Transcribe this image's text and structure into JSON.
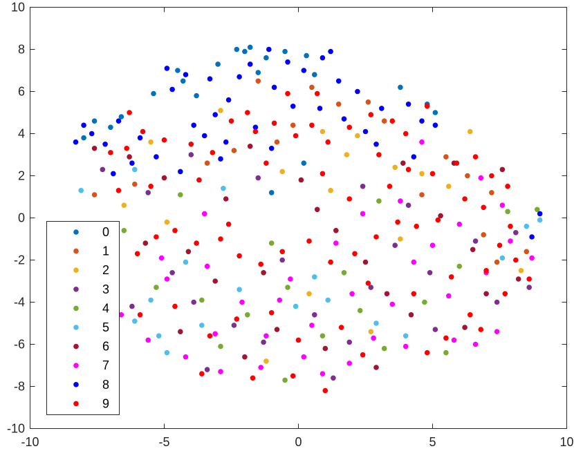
{
  "chart_data": {
    "type": "scatter",
    "title": "",
    "xlabel": "",
    "ylabel": "",
    "xlim": [
      -10,
      10
    ],
    "ylim": [
      -10,
      10
    ],
    "xticks": [
      "-10",
      "-5",
      "0",
      "5",
      "10"
    ],
    "yticks": [
      "-10",
      "-8",
      "-6",
      "-4",
      "-2",
      "0",
      "2",
      "4",
      "6",
      "8",
      "10"
    ],
    "grid": false,
    "legend_position": "bottom-left",
    "series": [
      {
        "name": "0",
        "color": "#0072BD",
        "points": [
          [
            -2.3,
            8.0
          ],
          [
            -2.0,
            7.9
          ],
          [
            -1.8,
            8.1
          ],
          [
            -1.2,
            7.6
          ],
          [
            -0.5,
            7.9
          ],
          [
            0.3,
            7.7
          ],
          [
            -3.0,
            7.3
          ],
          [
            -4.5,
            7.0
          ],
          [
            -4.3,
            6.5
          ],
          [
            -7.6,
            4.6
          ],
          [
            -7.0,
            4.3
          ],
          [
            -6.6,
            4.8
          ],
          [
            -8.0,
            3.8
          ],
          [
            0.6,
            6.8
          ],
          [
            3.8,
            6.2
          ],
          [
            4.8,
            5.4
          ],
          [
            5.1,
            5.0
          ],
          [
            -3.8,
            5.8
          ],
          [
            -5.4,
            5.9
          ],
          [
            -1.5,
            6.9
          ],
          [
            0.2,
            2.6
          ],
          [
            -1.0,
            1.2
          ]
        ]
      },
      {
        "name": "1",
        "color": "#D95319",
        "points": [
          [
            -1.5,
            6.5
          ],
          [
            0.5,
            6.2
          ],
          [
            1.5,
            5.4
          ],
          [
            2.6,
            5.5
          ],
          [
            3.2,
            4.6
          ],
          [
            -0.2,
            4.4
          ],
          [
            -2.4,
            3.2
          ],
          [
            -3.4,
            2.6
          ],
          [
            6.3,
            2.0
          ],
          [
            7.2,
            1.2
          ],
          [
            6.9,
            -0.8
          ],
          [
            7.4,
            -2.1
          ],
          [
            8.5,
            -1.6
          ],
          [
            5.5,
            2.9
          ],
          [
            4.6,
            1.1
          ],
          [
            -6.1,
            1.6
          ],
          [
            -7.6,
            1.1
          ],
          [
            -0.8,
            3.6
          ]
        ]
      },
      {
        "name": "2",
        "color": "#EDB120",
        "points": [
          [
            -5.5,
            3.6
          ],
          [
            -2.9,
            5.1
          ],
          [
            0.9,
            4.1
          ],
          [
            1.8,
            3.0
          ],
          [
            3.6,
            2.4
          ],
          [
            4.6,
            2.1
          ],
          [
            -6.5,
            0.6
          ],
          [
            -0.6,
            2.2
          ],
          [
            1.2,
            1.3
          ],
          [
            5.6,
            1.5
          ],
          [
            8.3,
            -2.5
          ],
          [
            2.7,
            -5.4
          ],
          [
            -1.2,
            -6.8
          ],
          [
            0.4,
            -3.6
          ],
          [
            3.8,
            -1.0
          ],
          [
            -4.9,
            -0.2
          ],
          [
            2.2,
            3.9
          ],
          [
            6.4,
            4.1
          ]
        ]
      },
      {
        "name": "3",
        "color": "#7E2F8E",
        "points": [
          [
            -4.7,
            -2.6
          ],
          [
            -3.9,
            -4.0
          ],
          [
            -2.4,
            -5.1
          ],
          [
            -1.3,
            -5.9
          ],
          [
            -0.6,
            -2.0
          ],
          [
            0.6,
            -4.6
          ],
          [
            1.9,
            -5.9
          ],
          [
            2.7,
            -3.3
          ],
          [
            3.6,
            -1.3
          ],
          [
            4.9,
            -2.6
          ],
          [
            6.6,
            -1.1
          ],
          [
            8.1,
            -0.7
          ],
          [
            7.4,
            -4.0
          ],
          [
            4.1,
            0.6
          ],
          [
            -5.6,
            1.2
          ],
          [
            -7.3,
            2.3
          ],
          [
            -6.2,
            -4.2
          ],
          [
            -3.4,
            -7.2
          ],
          [
            1.3,
            -7.6
          ],
          [
            -4.0,
            3.0
          ],
          [
            -1.5,
            1.9
          ],
          [
            2.4,
            1.5
          ],
          [
            5.1,
            -5.3
          ],
          [
            8.6,
            -3.3
          ]
        ]
      },
      {
        "name": "4",
        "color": "#77AC30",
        "points": [
          [
            -6.5,
            -0.6
          ],
          [
            -5.3,
            -3.3
          ],
          [
            -3.6,
            -3.9
          ],
          [
            -1.9,
            -4.6
          ],
          [
            -0.4,
            -3.3
          ],
          [
            0.9,
            -5.6
          ],
          [
            2.3,
            -4.4
          ],
          [
            3.2,
            -6.2
          ],
          [
            4.7,
            -4.0
          ],
          [
            6.0,
            -2.3
          ],
          [
            7.8,
            0.3
          ],
          [
            8.9,
            0.4
          ],
          [
            -2.9,
            -6.1
          ],
          [
            -0.5,
            -7.7
          ],
          [
            1.7,
            -2.6
          ],
          [
            -4.4,
            1.1
          ],
          [
            -1.0,
            -1.2
          ],
          [
            3.0,
            0.8
          ],
          [
            -7.1,
            -1.3
          ],
          [
            5.5,
            -6.4
          ]
        ]
      },
      {
        "name": "5",
        "color": "#4DBEEE",
        "points": [
          [
            -6.9,
            -3.1
          ],
          [
            -6.1,
            -4.9
          ],
          [
            -4.9,
            -6.4
          ],
          [
            -3.6,
            -5.1
          ],
          [
            -5.5,
            -3.9
          ],
          [
            -4.2,
            -2.1
          ],
          [
            -7.3,
            -1.6
          ],
          [
            -0.1,
            -4.2
          ],
          [
            1.1,
            -3.9
          ],
          [
            2.9,
            -5.0
          ],
          [
            8.5,
            -0.4
          ],
          [
            9.0,
            -0.1
          ],
          [
            -8.1,
            1.3
          ],
          [
            -6.1,
            2.3
          ],
          [
            -2.8,
            1.4
          ],
          [
            0.6,
            -2.8
          ],
          [
            4.0,
            -5.6
          ],
          [
            -2.2,
            -3.4
          ],
          [
            -5.2,
            -5.6
          ],
          [
            7.6,
            -1.9
          ]
        ]
      },
      {
        "name": "6",
        "color": "#A2142F",
        "points": [
          [
            -6.3,
            2.9
          ],
          [
            -5.0,
            1.9
          ],
          [
            -4.1,
            -1.6
          ],
          [
            -2.7,
            0.9
          ],
          [
            -1.3,
            -2.6
          ],
          [
            0.1,
            1.8
          ],
          [
            1.4,
            -0.6
          ],
          [
            2.5,
            -2.1
          ],
          [
            3.9,
            2.6
          ],
          [
            5.3,
            0.1
          ],
          [
            6.5,
            -1.5
          ],
          [
            7.6,
            2.3
          ],
          [
            8.2,
            -2.9
          ],
          [
            -7.6,
            3.3
          ],
          [
            -3.1,
            -3.0
          ],
          [
            -0.8,
            -5.3
          ],
          [
            1.0,
            -6.2
          ],
          [
            2.9,
            -7.1
          ],
          [
            4.2,
            -4.6
          ],
          [
            6.2,
            -5.2
          ],
          [
            7.0,
            -3.6
          ],
          [
            -5.7,
            -1.2
          ],
          [
            -1.8,
            3.4
          ],
          [
            0.7,
            0.4
          ],
          [
            3.3,
            -3.6
          ],
          [
            -4.4,
            -5.4
          ],
          [
            -2.0,
            -6.6
          ],
          [
            5.8,
            2.6
          ]
        ]
      },
      {
        "name": "7",
        "color": "#FF00FF",
        "points": [
          [
            -6.6,
            -4.6
          ],
          [
            -5.6,
            -5.8
          ],
          [
            -4.2,
            -6.6
          ],
          [
            -3.1,
            -5.5
          ],
          [
            -4.9,
            -2.9
          ],
          [
            -3.4,
            -2.3
          ],
          [
            -2.1,
            -4.0
          ],
          [
            -0.7,
            -3.9
          ],
          [
            0.2,
            -6.6
          ],
          [
            0.9,
            -7.4
          ],
          [
            1.9,
            -6.9
          ],
          [
            2.8,
            -5.7
          ],
          [
            3.5,
            -4.1
          ],
          [
            4.3,
            -2.1
          ],
          [
            5.0,
            -1.3
          ],
          [
            6.0,
            -0.3
          ],
          [
            7.0,
            -2.6
          ],
          [
            7.9,
            -1.1
          ],
          [
            8.7,
            -1.9
          ],
          [
            5.8,
            -5.8
          ],
          [
            6.6,
            -6.0
          ],
          [
            7.4,
            -5.4
          ],
          [
            1.4,
            -1.2
          ],
          [
            2.4,
            0.2
          ],
          [
            3.8,
            0.8
          ],
          [
            -0.3,
            -2.9
          ],
          [
            -1.4,
            -7.1
          ],
          [
            -2.9,
            -7.3
          ],
          [
            4.6,
            3.6
          ],
          [
            6.8,
            1.9
          ],
          [
            -3.5,
            0.2
          ],
          [
            -5.1,
            -1.9
          ],
          [
            -6.8,
            -1.0
          ],
          [
            2.0,
            -3.6
          ],
          [
            0.5,
            -5.1
          ],
          [
            -1.2,
            -5.6
          ],
          [
            5.6,
            -3.7
          ],
          [
            7.6,
            0.6
          ],
          [
            4.0,
            -6.1
          ]
        ]
      },
      {
        "name": "8",
        "color": "#0000FF",
        "points": [
          [
            -7.7,
            4.0
          ],
          [
            -7.2,
            3.5
          ],
          [
            -6.7,
            4.6
          ],
          [
            -8.0,
            4.4
          ],
          [
            -5.9,
            3.8
          ],
          [
            -5.3,
            2.9
          ],
          [
            -4.7,
            6.1
          ],
          [
            -4.2,
            6.8
          ],
          [
            -4.9,
            7.1
          ],
          [
            -3.5,
            3.9
          ],
          [
            -3.1,
            4.9
          ],
          [
            -2.6,
            5.6
          ],
          [
            -2.2,
            6.7
          ],
          [
            -1.8,
            7.3
          ],
          [
            -1.1,
            8.0
          ],
          [
            -0.4,
            7.4
          ],
          [
            0.2,
            7.0
          ],
          [
            0.9,
            7.6
          ],
          [
            1.5,
            6.5
          ],
          [
            2.2,
            6.0
          ],
          [
            -0.9,
            6.2
          ],
          [
            -1.6,
            4.3
          ],
          [
            -2.7,
            3.6
          ],
          [
            -3.9,
            4.4
          ],
          [
            -0.2,
            5.3
          ],
          [
            0.8,
            5.2
          ],
          [
            1.7,
            4.7
          ],
          [
            2.5,
            4.1
          ],
          [
            3.1,
            5.2
          ],
          [
            4.1,
            5.4
          ],
          [
            4.6,
            4.6
          ],
          [
            5.1,
            4.4
          ],
          [
            -6.9,
            2.1
          ],
          [
            -6.2,
            2.6
          ],
          [
            -4.4,
            2.2
          ],
          [
            -1.0,
            3.3
          ],
          [
            2.9,
            3.5
          ],
          [
            4.3,
            2.9
          ],
          [
            -8.3,
            3.6
          ],
          [
            1.2,
            7.9
          ],
          [
            9.0,
            0.2
          ],
          [
            8.7,
            -0.9
          ],
          [
            -3.3,
            6.6
          ],
          [
            -2.9,
            2.8
          ]
        ]
      },
      {
        "name": "9",
        "color": "#FF0000",
        "points": [
          [
            -7.0,
            3.1
          ],
          [
            -6.4,
            3.3
          ],
          [
            -5.8,
            4.1
          ],
          [
            -5.0,
            3.7
          ],
          [
            -4.0,
            3.5
          ],
          [
            -3.2,
            3.1
          ],
          [
            -2.5,
            4.6
          ],
          [
            -1.6,
            4.1
          ],
          [
            -0.9,
            4.5
          ],
          [
            -0.1,
            3.9
          ],
          [
            0.5,
            4.4
          ],
          [
            1.1,
            3.6
          ],
          [
            1.9,
            4.3
          ],
          [
            2.7,
            4.9
          ],
          [
            3.5,
            4.6
          ],
          [
            4.0,
            4.0
          ],
          [
            -0.4,
            5.9
          ],
          [
            0.7,
            5.9
          ],
          [
            -1.9,
            5.0
          ],
          [
            3.0,
            3.0
          ],
          [
            4.1,
            2.3
          ],
          [
            5.0,
            2.1
          ],
          [
            5.9,
            2.6
          ],
          [
            6.6,
            2.9
          ],
          [
            7.2,
            2.0
          ],
          [
            7.8,
            1.5
          ],
          [
            6.9,
            0.5
          ],
          [
            6.2,
            0.9
          ],
          [
            5.2,
            -0.1
          ],
          [
            4.4,
            -0.4
          ],
          [
            3.7,
            -0.2
          ],
          [
            2.9,
            -0.9
          ],
          [
            2.1,
            -1.7
          ],
          [
            1.2,
            -2.1
          ],
          [
            0.4,
            -1.1
          ],
          [
            -0.6,
            -1.6
          ],
          [
            -1.4,
            -2.2
          ],
          [
            -2.2,
            -1.8
          ],
          [
            -2.9,
            -1.0
          ],
          [
            -3.8,
            -1.2
          ],
          [
            -4.6,
            -0.6
          ],
          [
            -5.3,
            -0.9
          ],
          [
            -6.0,
            -1.7
          ],
          [
            -6.7,
            1.3
          ],
          [
            7.5,
            -1.3
          ],
          [
            8.1,
            -2.0
          ],
          [
            7.0,
            -2.5
          ],
          [
            7.7,
            -3.6
          ],
          [
            6.4,
            -4.6
          ],
          [
            5.5,
            -5.7
          ],
          [
            6.8,
            -5.3
          ],
          [
            4.8,
            -6.4
          ],
          [
            2.4,
            -6.5
          ],
          [
            1.6,
            -5.2
          ],
          [
            0.0,
            -5.8
          ],
          [
            -1.0,
            -4.5
          ],
          [
            -2.3,
            -4.8
          ],
          [
            -3.3,
            -5.6
          ],
          [
            -4.6,
            -4.2
          ],
          [
            -5.9,
            -4.6
          ],
          [
            -2.6,
            -0.3
          ],
          [
            1.9,
            0.9
          ],
          [
            3.4,
            1.5
          ],
          [
            -1.2,
            2.6
          ],
          [
            0.9,
            2.1
          ],
          [
            -3.7,
            1.8
          ],
          [
            -5.5,
            1.5
          ],
          [
            2.6,
            -3.1
          ],
          [
            4.3,
            -3.6
          ],
          [
            -0.2,
            -7.5
          ],
          [
            -1.7,
            -7.6
          ],
          [
            1.0,
            -8.2
          ],
          [
            -6.3,
            5.0
          ],
          [
            4.8,
            5.3
          ],
          [
            7.9,
            -0.4
          ],
          [
            8.6,
            -2.9
          ],
          [
            5.7,
            -2.8
          ],
          [
            -3.6,
            -7.4
          ]
        ]
      }
    ]
  }
}
